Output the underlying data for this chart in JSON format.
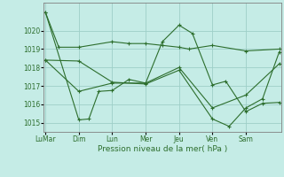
{
  "xlabel": "Pression niveau de la mer( hPa )",
  "background_color": "#c5ece6",
  "grid_color": "#9ecfc8",
  "line_color": "#2d6e2d",
  "ylim": [
    1014.5,
    1021.5
  ],
  "yticks": [
    1015,
    1016,
    1017,
    1018,
    1019,
    1020
  ],
  "xlim": [
    -0.05,
    7.05
  ],
  "x_tick_pos": [
    0,
    1,
    2,
    3,
    4,
    5,
    6,
    7
  ],
  "x_labels": [
    "LuMar",
    "Dim",
    "Lun",
    "Mer",
    "Jeu",
    "Ven",
    "Sam",
    ""
  ],
  "line_a_x": [
    0,
    0.4,
    1,
    2,
    2.5,
    3,
    3.5,
    4,
    4.3,
    5,
    6,
    7
  ],
  "line_a_y": [
    1021.0,
    1019.1,
    1019.1,
    1019.4,
    1019.3,
    1019.3,
    1019.2,
    1019.1,
    1019.0,
    1019.2,
    1018.9,
    1019.0
  ],
  "line_b_x": [
    0,
    1,
    1.3,
    1.6,
    2,
    2.5,
    3,
    3.5,
    4,
    4.4,
    5,
    5.4,
    6,
    6.5,
    7
  ],
  "line_b_y": [
    1021.0,
    1015.15,
    1015.2,
    1016.7,
    1016.75,
    1017.35,
    1017.15,
    1019.4,
    1020.3,
    1019.85,
    1017.05,
    1017.25,
    1015.6,
    1016.05,
    1016.1
  ],
  "line_c_x": [
    0,
    1,
    2,
    3,
    4,
    5,
    5.5,
    6,
    6.5,
    7
  ],
  "line_c_y": [
    1018.4,
    1018.35,
    1017.2,
    1017.1,
    1017.85,
    1015.2,
    1014.8,
    1015.8,
    1016.3,
    1018.85
  ],
  "line_d_x": [
    0,
    1,
    2,
    3,
    4,
    5,
    6,
    7
  ],
  "line_d_y": [
    1018.4,
    1016.7,
    1017.15,
    1017.15,
    1018.0,
    1015.8,
    1016.5,
    1018.2
  ]
}
